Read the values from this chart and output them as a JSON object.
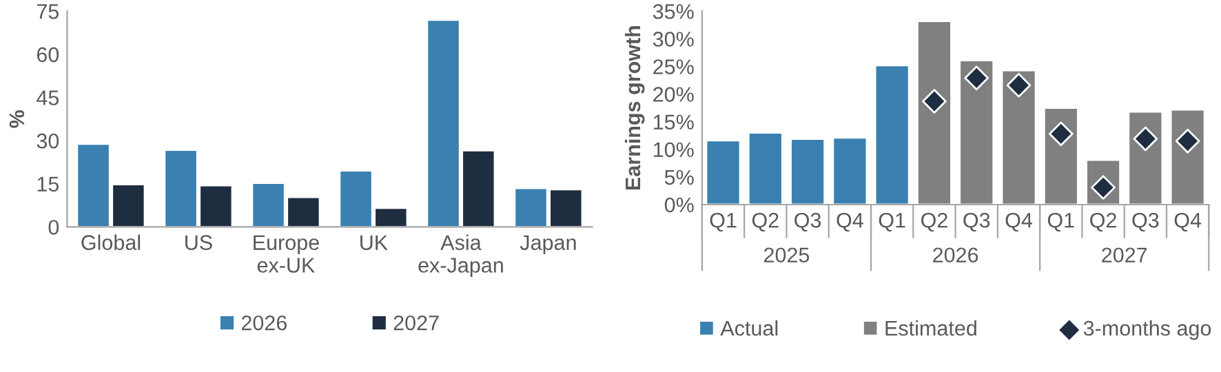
{
  "chart_data": [
    {
      "type": "bar",
      "ylabel": "%",
      "categories": [
        "Global",
        "US",
        "Europe\nex-UK",
        "UK",
        "Asia\nex-Japan",
        "Japan"
      ],
      "ylim": [
        0,
        75
      ],
      "yticks": [
        0,
        15,
        30,
        45,
        60,
        75
      ],
      "grid": false,
      "legend": "bottom",
      "series": [
        {
          "name": "2026",
          "color": "#3a80b0",
          "values": [
            28.8,
            26.7,
            15.2,
            19.5,
            71.9,
            13.4
          ]
        },
        {
          "name": "2027",
          "color": "#1f2d40",
          "values": [
            14.7,
            14.4,
            10.3,
            6.5,
            26.5,
            13.0
          ]
        }
      ]
    },
    {
      "type": "bar",
      "stacked": true,
      "ylabel": "Earnings growth",
      "categories": [
        "Q1",
        "Q2",
        "Q3",
        "Q4",
        "Q1",
        "Q2",
        "Q3",
        "Q4",
        "Q1",
        "Q2",
        "Q3",
        "Q4"
      ],
      "annotations": [
        "2025",
        "2026",
        "2027"
      ],
      "ylim": [
        0,
        35
      ],
      "yticks": [
        {
          "value": 0,
          "label": "0%"
        },
        {
          "value": 5,
          "label": "5%"
        },
        {
          "value": 10,
          "label": "10%"
        },
        {
          "value": 15,
          "label": "15%"
        },
        {
          "value": 20,
          "label": "20%"
        },
        {
          "value": 25,
          "label": "25%"
        },
        {
          "value": 30,
          "label": "30%"
        },
        {
          "value": 35,
          "label": "35%"
        }
      ],
      "grid": false,
      "legend": "bottom",
      "series": [
        {
          "name": "Actual",
          "color": "#3a80b0",
          "values": [
            11.6,
            13.0,
            11.9,
            12.1,
            25.2,
            null,
            null,
            null,
            null,
            null,
            null,
            null
          ]
        },
        {
          "name": "Estimated",
          "color": "#808080",
          "values": [
            null,
            null,
            null,
            null,
            null,
            33.2,
            26.1,
            24.3,
            17.5,
            8.1,
            16.8,
            17.2
          ]
        },
        {
          "name": "3-months ago",
          "type": "scatter",
          "marker": "diamond",
          "color": "#1f2d40",
          "values": [
            null,
            null,
            null,
            null,
            null,
            18.7,
            22.9,
            21.6,
            12.8,
            3.1,
            11.9,
            11.5
          ]
        }
      ]
    }
  ]
}
